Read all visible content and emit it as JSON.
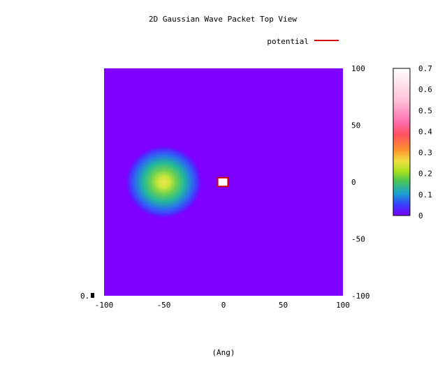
{
  "chart_data": {
    "type": "heatmap",
    "title": "2D Gaussian Wave Packet Top View",
    "xlabel": "(Ang)",
    "ylabel": "",
    "xlim": [
      -100,
      100
    ],
    "ylim": [
      -100,
      100
    ],
    "x_ticks": [
      "-100",
      "-50",
      "0",
      "50",
      "100"
    ],
    "y_ticks": [
      "100",
      "50",
      "0",
      "-50",
      "-100"
    ],
    "zlim": [
      0,
      0.7
    ],
    "colorbar_ticks": [
      "0.7",
      "0.6",
      "0.5",
      "0.4",
      "0.3",
      "0.2",
      "0.1",
      "0"
    ],
    "corner_label": "0.",
    "legend": {
      "placement": "top-right",
      "entries": [
        {
          "label": "potential",
          "color": "#cc0000"
        }
      ]
    },
    "wave_packet": {
      "center_x": -50,
      "center_y": 0,
      "sigma": 11,
      "peak": 0.22
    },
    "potential_region": {
      "x": [
        -2,
        2
      ],
      "y": [
        -2,
        2
      ],
      "fill": "#ffffff",
      "stroke": "#cc0000"
    },
    "background_value": 0,
    "grid": false
  }
}
